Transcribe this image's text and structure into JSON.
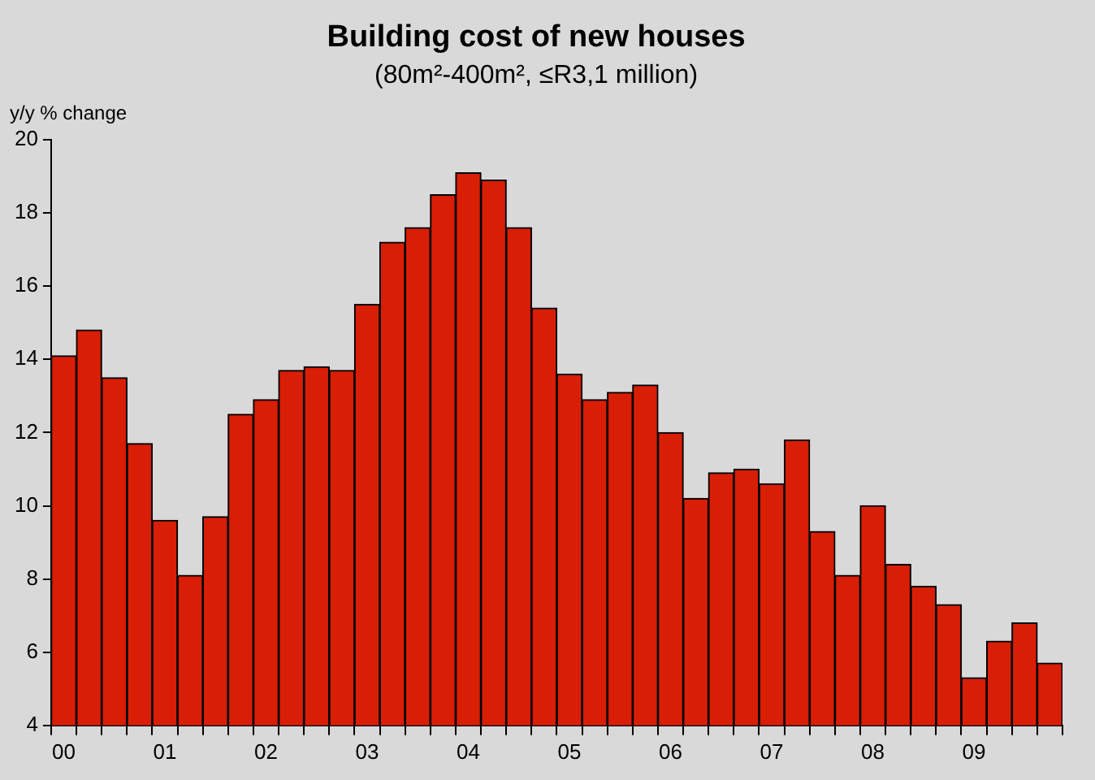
{
  "chart_data": {
    "type": "bar",
    "title": "Building cost of new houses",
    "subtitle": "(80m²-400m², ≤R3,1 million)",
    "ylabel": "y/y % change",
    "categories": [
      "00",
      null,
      null,
      null,
      "01",
      null,
      null,
      null,
      "02",
      null,
      null,
      null,
      "03",
      null,
      null,
      null,
      "04",
      null,
      null,
      null,
      "05",
      null,
      null,
      null,
      "06",
      null,
      null,
      null,
      "07",
      null,
      null,
      null,
      "08",
      null,
      null,
      null,
      "09",
      null,
      null,
      null
    ],
    "values": [
      14.1,
      14.8,
      13.5,
      11.7,
      9.6,
      8.1,
      9.7,
      12.5,
      12.9,
      13.7,
      13.8,
      13.7,
      15.5,
      17.2,
      17.6,
      18.5,
      19.1,
      18.9,
      17.6,
      15.4,
      13.6,
      12.9,
      13.1,
      13.3,
      12.0,
      10.2,
      10.9,
      11.0,
      10.6,
      11.8,
      9.3,
      8.1,
      10.0,
      8.4,
      7.8,
      7.3,
      5.3,
      6.3,
      6.8,
      5.7
    ],
    "color": "#d81e05",
    "ylim": [
      4,
      20
    ],
    "yticks": [
      4,
      6,
      8,
      10,
      12,
      14,
      16,
      18,
      20
    ],
    "grid": false,
    "legend": false
  }
}
